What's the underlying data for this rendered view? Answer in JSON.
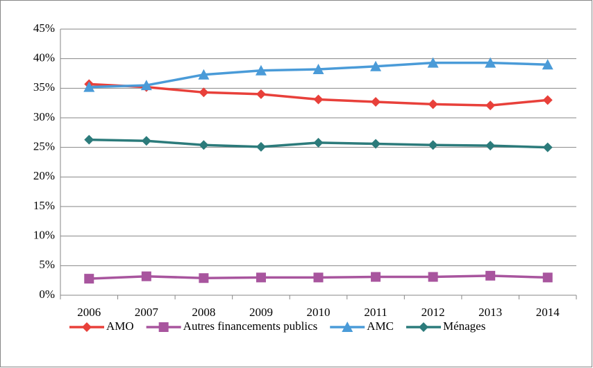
{
  "chart_data": {
    "type": "line",
    "categories": [
      "2006",
      "2007",
      "2008",
      "2009",
      "2010",
      "2011",
      "2012",
      "2013",
      "2014"
    ],
    "series": [
      {
        "name": "AMO",
        "color": "#e8403a",
        "marker": "diamond",
        "values": [
          35.7,
          35.2,
          34.3,
          34.0,
          33.1,
          32.7,
          32.3,
          32.1,
          33.0
        ]
      },
      {
        "name": "Autres financements publics",
        "color": "#a8559e",
        "marker": "square",
        "values": [
          2.8,
          3.2,
          2.9,
          3.0,
          3.0,
          3.1,
          3.1,
          3.3,
          3.0
        ]
      },
      {
        "name": "AMC",
        "color": "#4a9bd8",
        "marker": "triangle",
        "values": [
          35.2,
          35.5,
          37.3,
          38.0,
          38.2,
          38.7,
          39.3,
          39.3,
          39.0
        ]
      },
      {
        "name": "Ménages",
        "color": "#2c7b7b",
        "marker": "diamond",
        "values": [
          26.3,
          26.1,
          25.4,
          25.1,
          25.8,
          25.6,
          25.4,
          25.3,
          25.0
        ]
      }
    ],
    "ylim": [
      0,
      45
    ],
    "yticks": [
      {
        "value": 0,
        "label": "0%"
      },
      {
        "value": 5,
        "label": "5%"
      },
      {
        "value": 10,
        "label": "10%"
      },
      {
        "value": 15,
        "label": "15%"
      },
      {
        "value": 20,
        "label": "20%"
      },
      {
        "value": 25,
        "label": "25%"
      },
      {
        "value": 30,
        "label": "30%"
      },
      {
        "value": 35,
        "label": "35%"
      },
      {
        "value": 40,
        "label": "40%"
      },
      {
        "value": 45,
        "label": "45%"
      }
    ],
    "grid": true,
    "legend": "bottom"
  }
}
